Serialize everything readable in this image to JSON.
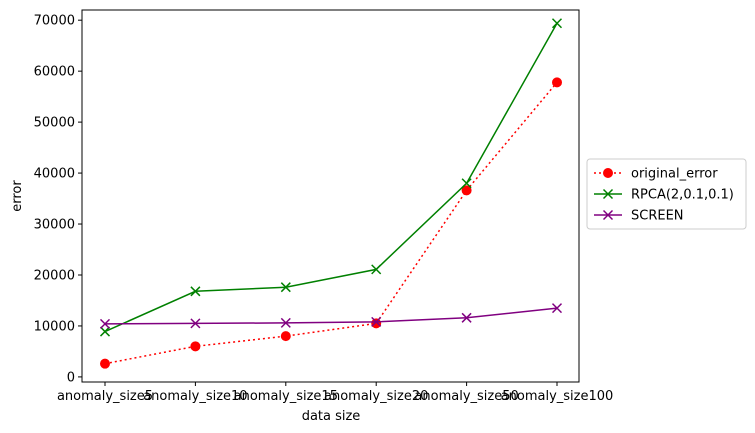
{
  "chart_data": {
    "type": "line",
    "title": "",
    "xlabel": "data size",
    "ylabel": "error",
    "categories": [
      "anomaly_size5",
      "anomaly_size10",
      "anomaly_size15",
      "anomaly_size20",
      "anomaly_size50",
      "anomaly_size100"
    ],
    "ylim": [
      -1000,
      72000
    ],
    "yticks": [
      0,
      10000,
      20000,
      30000,
      40000,
      50000,
      60000,
      70000
    ],
    "grid": false,
    "legend_position": "center-right-outside",
    "series": [
      {
        "name": "original_error",
        "color": "#ff0000",
        "line_style": "dotted",
        "marker": "circle",
        "values": [
          2600,
          6000,
          8000,
          10500,
          36600,
          57800
        ]
      },
      {
        "name": "RPCA(2,0.1,0.1)",
        "color": "#008000",
        "line_style": "solid",
        "marker": "x",
        "values": [
          8900,
          16800,
          17600,
          21100,
          38000,
          69400
        ]
      },
      {
        "name": "SCREEN",
        "color": "#800080",
        "line_style": "solid",
        "marker": "x",
        "values": [
          10400,
          10500,
          10600,
          10800,
          11600,
          13500
        ]
      }
    ]
  }
}
